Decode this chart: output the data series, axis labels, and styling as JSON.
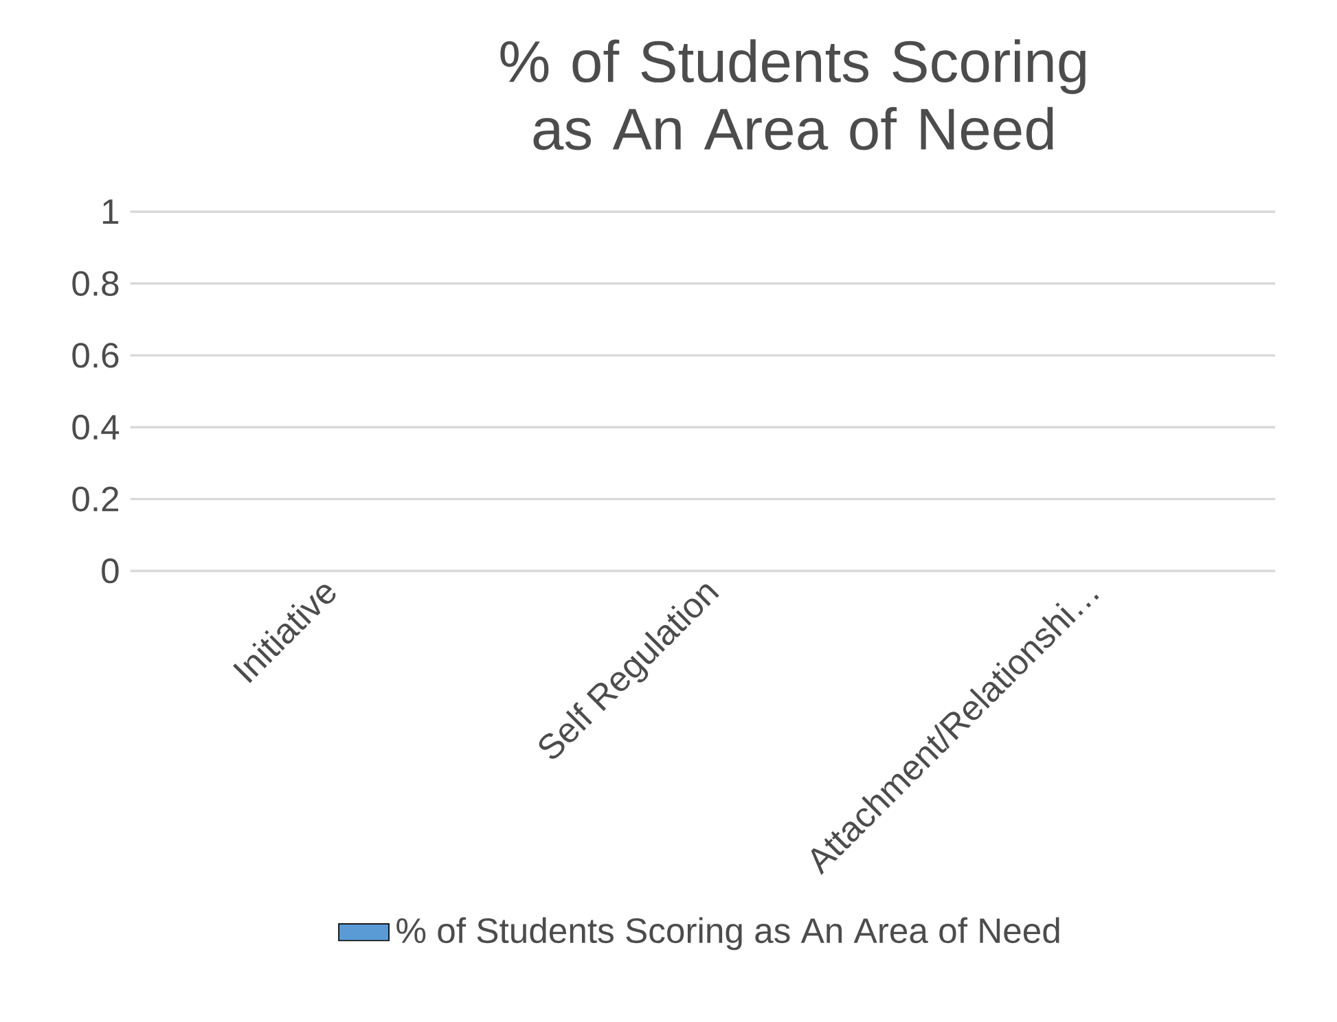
{
  "chart_data": {
    "type": "bar",
    "title": "% of Students Scoring as An Area of Need",
    "categories": [
      "Initiative",
      "Self Regulation",
      "Attachment/Relationshi…"
    ],
    "series": [
      {
        "name": "% of Students Scoring as An Area of Need",
        "color": "#5b9bd5",
        "values": [
          0,
          0,
          0
        ]
      }
    ],
    "ylim": [
      0,
      1
    ],
    "yticks": [
      0,
      0.2,
      0.4,
      0.6,
      0.8,
      1
    ],
    "grid": "y",
    "legend": "bottom"
  }
}
